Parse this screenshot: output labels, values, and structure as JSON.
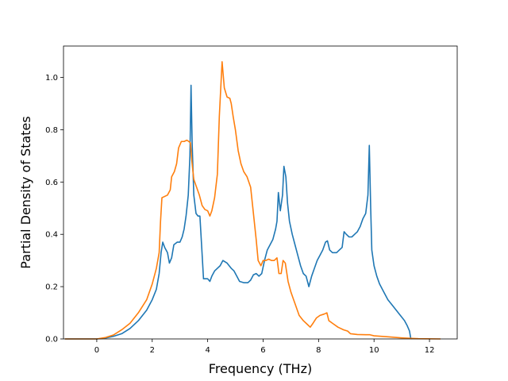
{
  "chart_data": {
    "type": "line",
    "title": "",
    "xlabel": "Frequency (THz)",
    "ylabel": "Partial Density of States",
    "xlim": [
      -1.2,
      13.0
    ],
    "ylim": [
      0.0,
      1.12
    ],
    "xticks": [
      0,
      2,
      4,
      6,
      8,
      10,
      12
    ],
    "yticks": [
      0.0,
      0.2,
      0.4,
      0.6,
      0.8,
      1.0
    ],
    "xtick_labels": [
      "0",
      "2",
      "4",
      "6",
      "8",
      "10",
      "12"
    ],
    "ytick_labels": [
      "0.0",
      "0.2",
      "0.4",
      "0.6",
      "0.8",
      "1.0"
    ],
    "grid": false,
    "legend": "none",
    "series": [
      {
        "color": "#1f77b4",
        "points": [
          [
            -1.15,
            0
          ],
          [
            0,
            0
          ],
          [
            0.3,
            0.003
          ],
          [
            0.6,
            0.01
          ],
          [
            0.9,
            0.02
          ],
          [
            1.2,
            0.04
          ],
          [
            1.5,
            0.07
          ],
          [
            1.8,
            0.11
          ],
          [
            2.0,
            0.15
          ],
          [
            2.15,
            0.19
          ],
          [
            2.25,
            0.25
          ],
          [
            2.32,
            0.33
          ],
          [
            2.38,
            0.37
          ],
          [
            2.45,
            0.35
          ],
          [
            2.55,
            0.33
          ],
          [
            2.62,
            0.29
          ],
          [
            2.7,
            0.31
          ],
          [
            2.78,
            0.36
          ],
          [
            2.9,
            0.37
          ],
          [
            3.0,
            0.37
          ],
          [
            3.08,
            0.39
          ],
          [
            3.15,
            0.42
          ],
          [
            3.22,
            0.47
          ],
          [
            3.3,
            0.55
          ],
          [
            3.36,
            0.7
          ],
          [
            3.4,
            0.97
          ],
          [
            3.44,
            0.75
          ],
          [
            3.5,
            0.55
          ],
          [
            3.58,
            0.48
          ],
          [
            3.65,
            0.47
          ],
          [
            3.72,
            0.47
          ],
          [
            3.78,
            0.36
          ],
          [
            3.85,
            0.23
          ],
          [
            4.0,
            0.23
          ],
          [
            4.08,
            0.22
          ],
          [
            4.15,
            0.24
          ],
          [
            4.25,
            0.26
          ],
          [
            4.35,
            0.27
          ],
          [
            4.45,
            0.28
          ],
          [
            4.55,
            0.3
          ],
          [
            4.7,
            0.29
          ],
          [
            4.85,
            0.27
          ],
          [
            4.95,
            0.26
          ],
          [
            5.05,
            0.24
          ],
          [
            5.15,
            0.22
          ],
          [
            5.3,
            0.215
          ],
          [
            5.45,
            0.215
          ],
          [
            5.55,
            0.225
          ],
          [
            5.65,
            0.245
          ],
          [
            5.75,
            0.25
          ],
          [
            5.85,
            0.24
          ],
          [
            5.95,
            0.25
          ],
          [
            6.05,
            0.3
          ],
          [
            6.15,
            0.34
          ],
          [
            6.25,
            0.36
          ],
          [
            6.35,
            0.38
          ],
          [
            6.45,
            0.42
          ],
          [
            6.5,
            0.45
          ],
          [
            6.55,
            0.56
          ],
          [
            6.62,
            0.49
          ],
          [
            6.7,
            0.55
          ],
          [
            6.75,
            0.66
          ],
          [
            6.82,
            0.62
          ],
          [
            6.88,
            0.52
          ],
          [
            6.95,
            0.45
          ],
          [
            7.05,
            0.4
          ],
          [
            7.15,
            0.36
          ],
          [
            7.25,
            0.32
          ],
          [
            7.35,
            0.28
          ],
          [
            7.45,
            0.25
          ],
          [
            7.55,
            0.24
          ],
          [
            7.65,
            0.2
          ],
          [
            7.75,
            0.24
          ],
          [
            7.85,
            0.27
          ],
          [
            7.95,
            0.3
          ],
          [
            8.05,
            0.32
          ],
          [
            8.15,
            0.34
          ],
          [
            8.25,
            0.37
          ],
          [
            8.32,
            0.375
          ],
          [
            8.4,
            0.34
          ],
          [
            8.5,
            0.33
          ],
          [
            8.65,
            0.33
          ],
          [
            8.75,
            0.34
          ],
          [
            8.85,
            0.35
          ],
          [
            8.92,
            0.41
          ],
          [
            9.0,
            0.4
          ],
          [
            9.1,
            0.39
          ],
          [
            9.2,
            0.39
          ],
          [
            9.3,
            0.4
          ],
          [
            9.4,
            0.41
          ],
          [
            9.5,
            0.43
          ],
          [
            9.6,
            0.46
          ],
          [
            9.7,
            0.48
          ],
          [
            9.78,
            0.55
          ],
          [
            9.83,
            0.74
          ],
          [
            9.88,
            0.5
          ],
          [
            9.92,
            0.34
          ],
          [
            10.0,
            0.28
          ],
          [
            10.1,
            0.24
          ],
          [
            10.2,
            0.21
          ],
          [
            10.35,
            0.18
          ],
          [
            10.5,
            0.15
          ],
          [
            10.65,
            0.13
          ],
          [
            10.8,
            0.11
          ],
          [
            10.95,
            0.09
          ],
          [
            11.1,
            0.07
          ],
          [
            11.2,
            0.05
          ],
          [
            11.28,
            0.03
          ],
          [
            11.32,
            0.005
          ],
          [
            11.36,
            0
          ]
        ]
      },
      {
        "color": "#ff7f0e",
        "points": [
          [
            -1.15,
            0
          ],
          [
            0,
            0
          ],
          [
            0.3,
            0.005
          ],
          [
            0.6,
            0.015
          ],
          [
            0.9,
            0.035
          ],
          [
            1.2,
            0.06
          ],
          [
            1.5,
            0.1
          ],
          [
            1.8,
            0.15
          ],
          [
            2.0,
            0.21
          ],
          [
            2.15,
            0.27
          ],
          [
            2.25,
            0.33
          ],
          [
            2.3,
            0.45
          ],
          [
            2.35,
            0.54
          ],
          [
            2.45,
            0.545
          ],
          [
            2.55,
            0.55
          ],
          [
            2.65,
            0.57
          ],
          [
            2.7,
            0.62
          ],
          [
            2.8,
            0.64
          ],
          [
            2.88,
            0.67
          ],
          [
            2.95,
            0.73
          ],
          [
            3.05,
            0.755
          ],
          [
            3.15,
            0.755
          ],
          [
            3.25,
            0.76
          ],
          [
            3.32,
            0.755
          ],
          [
            3.38,
            0.75
          ],
          [
            3.43,
            0.68
          ],
          [
            3.5,
            0.61
          ],
          [
            3.6,
            0.58
          ],
          [
            3.7,
            0.55
          ],
          [
            3.8,
            0.51
          ],
          [
            3.9,
            0.495
          ],
          [
            4.0,
            0.49
          ],
          [
            4.08,
            0.47
          ],
          [
            4.15,
            0.49
          ],
          [
            4.25,
            0.54
          ],
          [
            4.35,
            0.63
          ],
          [
            4.42,
            0.85
          ],
          [
            4.52,
            1.06
          ],
          [
            4.6,
            0.96
          ],
          [
            4.7,
            0.925
          ],
          [
            4.8,
            0.92
          ],
          [
            4.85,
            0.9
          ],
          [
            4.92,
            0.85
          ],
          [
            5.0,
            0.8
          ],
          [
            5.1,
            0.72
          ],
          [
            5.2,
            0.67
          ],
          [
            5.3,
            0.64
          ],
          [
            5.42,
            0.62
          ],
          [
            5.55,
            0.58
          ],
          [
            5.65,
            0.48
          ],
          [
            5.75,
            0.38
          ],
          [
            5.82,
            0.3
          ],
          [
            5.92,
            0.28
          ],
          [
            6.0,
            0.3
          ],
          [
            6.1,
            0.3
          ],
          [
            6.2,
            0.305
          ],
          [
            6.3,
            0.3
          ],
          [
            6.4,
            0.3
          ],
          [
            6.5,
            0.31
          ],
          [
            6.57,
            0.25
          ],
          [
            6.65,
            0.25
          ],
          [
            6.72,
            0.3
          ],
          [
            6.8,
            0.29
          ],
          [
            6.9,
            0.22
          ],
          [
            7.0,
            0.18
          ],
          [
            7.1,
            0.15
          ],
          [
            7.2,
            0.12
          ],
          [
            7.3,
            0.09
          ],
          [
            7.45,
            0.07
          ],
          [
            7.6,
            0.055
          ],
          [
            7.7,
            0.045
          ],
          [
            7.8,
            0.06
          ],
          [
            7.92,
            0.08
          ],
          [
            8.05,
            0.09
          ],
          [
            8.2,
            0.095
          ],
          [
            8.3,
            0.1
          ],
          [
            8.37,
            0.07
          ],
          [
            8.5,
            0.06
          ],
          [
            8.7,
            0.045
          ],
          [
            8.9,
            0.035
          ],
          [
            9.05,
            0.03
          ],
          [
            9.15,
            0.02
          ],
          [
            9.4,
            0.017
          ],
          [
            9.7,
            0.016
          ],
          [
            9.85,
            0.016
          ],
          [
            10.0,
            0.012
          ],
          [
            10.5,
            0.008
          ],
          [
            11.0,
            0.004
          ],
          [
            11.35,
            0.002
          ],
          [
            11.6,
            0.001
          ],
          [
            12.4,
            0
          ]
        ]
      }
    ]
  }
}
